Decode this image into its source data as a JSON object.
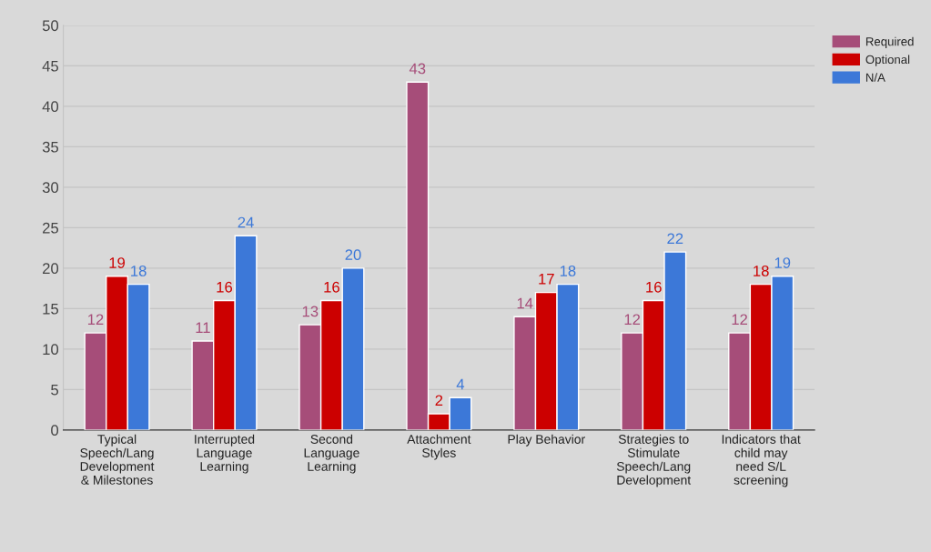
{
  "chart_data": {
    "type": "bar",
    "categories": [
      "Typical\nSpeech/Lang\nDevelopment\n& Milestones",
      "Interrupted\nLanguage\nLearning",
      "Second\nLanguage\nLearning",
      "Attachment\nStyles",
      "Play Behavior",
      "Strategies to\nStimulate\nSpeech/Lang\nDevelopment",
      "Indicators that\nchild may\nneed S/L\nscreening"
    ],
    "series": [
      {
        "name": "Required",
        "color": "#a64d79",
        "values": [
          12,
          11,
          13,
          43,
          14,
          12,
          12
        ]
      },
      {
        "name": "Optional",
        "color": "#cc0000",
        "values": [
          19,
          16,
          16,
          2,
          17,
          16,
          18
        ]
      },
      {
        "name": "N/A",
        "color": "#3c78d8",
        "values": [
          18,
          24,
          20,
          4,
          18,
          22,
          19
        ]
      }
    ],
    "ylim": [
      0,
      50
    ],
    "yticks": [
      0,
      5,
      10,
      15,
      20,
      25,
      30,
      35,
      40,
      45,
      50
    ],
    "grid": "y",
    "legend": "top right",
    "data_labels": true
  }
}
